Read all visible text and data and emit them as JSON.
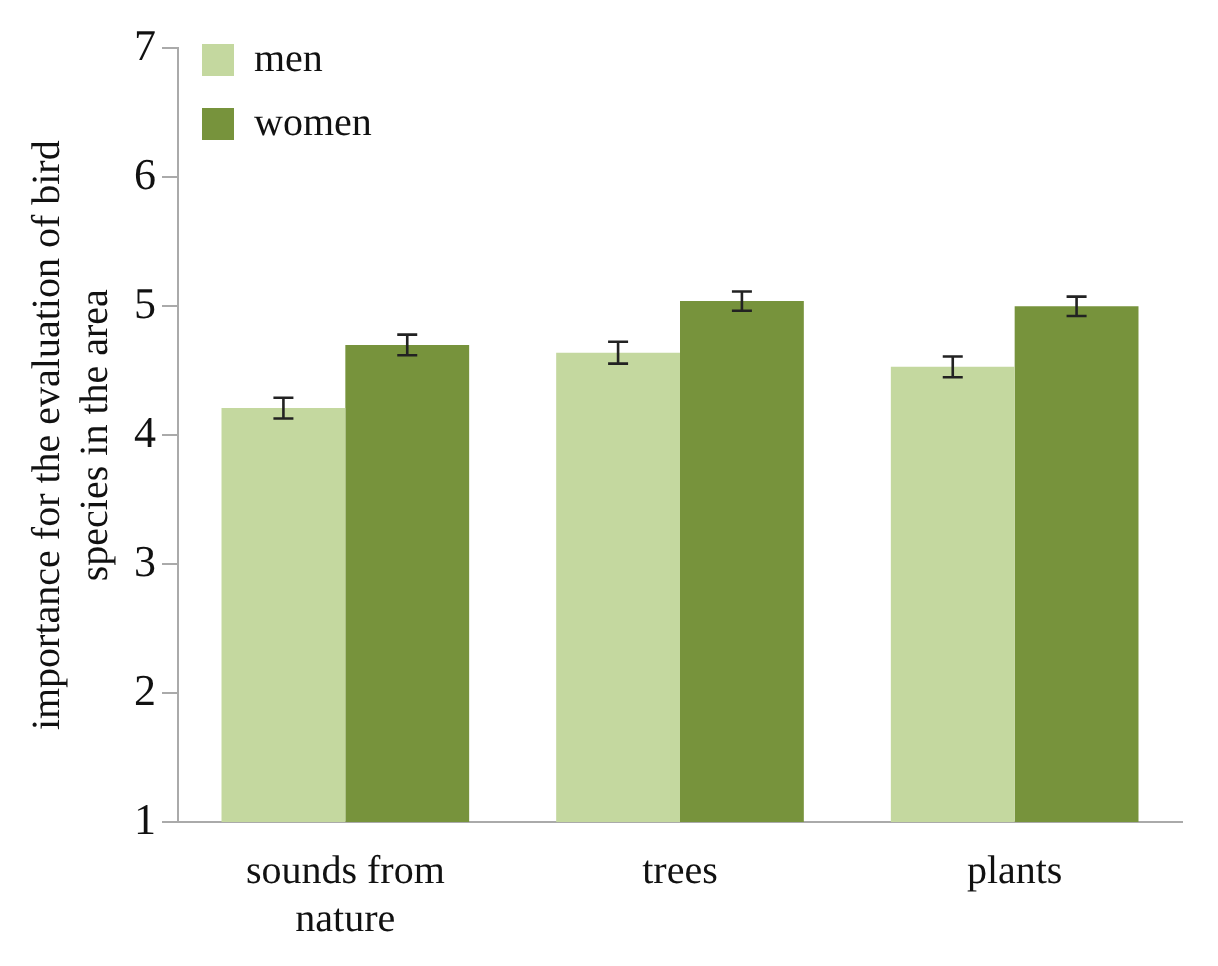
{
  "chart_data": {
    "type": "bar",
    "ylabel": "importance for the evaluation of bird species in the area",
    "categories": [
      "sounds from nature",
      "trees",
      "plants"
    ],
    "series": [
      {
        "name": "men",
        "color": "#c4d89f",
        "values": [
          4.21,
          4.64,
          4.53
        ],
        "errors": [
          0.08,
          0.085,
          0.08
        ]
      },
      {
        "name": "women",
        "color": "#77933c",
        "values": [
          4.7,
          5.04,
          5.0
        ],
        "errors": [
          0.08,
          0.075,
          0.075
        ]
      }
    ],
    "ylim": [
      1,
      7
    ],
    "yticks": [
      1,
      2,
      3,
      4,
      5,
      6,
      7
    ],
    "grid": false,
    "legend": "top left"
  }
}
